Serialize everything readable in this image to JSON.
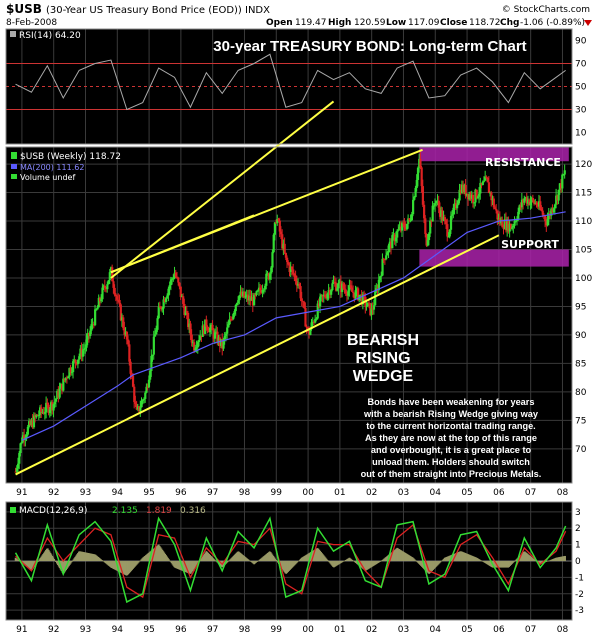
{
  "header": {
    "symbol": "$USB",
    "description": "(30-Year US Treasury Bond Price (EOD)) INDX",
    "date": "8-Feb-2008",
    "watermark": "© StockCharts.com",
    "open_label": "Open",
    "open": "119.47",
    "high_label": "High",
    "high": "120.59",
    "low_label": "Low",
    "low": "117.09",
    "close_label": "Close",
    "close": "118.72",
    "chg_label": "Chg",
    "chg": "-1.06 (-0.89%)"
  },
  "title": "30-year TREASURY BOND: Long-term Chart",
  "annotations": {
    "resistance": "RESISTANCE",
    "support": "SUPPORT",
    "wedge_line1": "BEARISH",
    "wedge_line2": "RISING",
    "wedge_line3": "WEDGE",
    "commentary": [
      "Bonds have been weakening for years",
      "with a bearish Rising Wedge giving way",
      "to the current horizontal trading range.",
      "As they are now at the top of this range",
      "and overbought, it is a great place to",
      "unload them. Holders should switch",
      "out of them straight into Precious Metals."
    ]
  },
  "colors": {
    "panel_bg": "#000000",
    "grid": "#3a3a3a",
    "price_up": "#33dd33",
    "price_down": "#dd2222",
    "ma": "#5a5aff",
    "rsi_line": "#aaaaaa",
    "rsi_ref": "#cc3333",
    "wedge": "#ffff44",
    "band": "#aa22aa",
    "macd": "#33dd33",
    "signal": "#dd2222",
    "histogram": "#999966",
    "text_on_dark": "#ffffff"
  },
  "chart_data": [
    {
      "panel": "rsi",
      "type": "line",
      "legend": "RSI(14) 64.20",
      "ylim": [
        0,
        100
      ],
      "yticks": [
        10,
        30,
        50,
        70,
        90
      ],
      "ref_lines": [
        30,
        50,
        70
      ],
      "series": [
        {
          "name": "RSI(14)",
          "x": [
            1990.8,
            1991.3,
            1991.8,
            1992.3,
            1992.8,
            1993.3,
            1993.8,
            1994.3,
            1994.8,
            1995.3,
            1995.8,
            1996.3,
            1996.8,
            1997.3,
            1997.8,
            1998.3,
            1998.8,
            1999.3,
            1999.8,
            2000.3,
            2000.8,
            2001.3,
            2001.8,
            2002.3,
            2002.8,
            2003.3,
            2003.8,
            2004.3,
            2004.8,
            2005.3,
            2005.8,
            2006.3,
            2006.8,
            2007.3,
            2007.8,
            2008.1
          ],
          "values": [
            52,
            45,
            68,
            40,
            64,
            70,
            73,
            30,
            36,
            66,
            58,
            32,
            62,
            44,
            64,
            70,
            78,
            32,
            36,
            64,
            56,
            62,
            48,
            44,
            66,
            72,
            40,
            42,
            60,
            66,
            54,
            36,
            62,
            48,
            58,
            64
          ]
        }
      ]
    },
    {
      "panel": "price",
      "type": "candlestick",
      "legend": [
        "$USB (Weekly) 118.72",
        "MA(200) 111.62",
        "Volume undef"
      ],
      "ylim": [
        64,
        123
      ],
      "yticks": [
        70,
        75,
        80,
        85,
        90,
        95,
        100,
        105,
        110,
        115,
        120
      ],
      "xticks": [
        "91",
        "92",
        "93",
        "94",
        "95",
        "96",
        "97",
        "98",
        "99",
        "00",
        "01",
        "02",
        "03",
        "04",
        "05",
        "06",
        "07",
        "08"
      ],
      "xlim": [
        1990.5,
        2008.3
      ],
      "series": [
        {
          "name": "$USB (Weekly)",
          "x": [
            1990.8,
            1991.0,
            1991.5,
            1992.0,
            1992.5,
            1993.0,
            1993.5,
            1993.8,
            1994.0,
            1994.3,
            1994.6,
            1994.9,
            1995.3,
            1995.8,
            1996.0,
            1996.4,
            1996.8,
            1997.3,
            1997.8,
            1998.3,
            1998.8,
            1999.0,
            1999.3,
            1999.7,
            2000.0,
            2000.4,
            2000.8,
            2001.2,
            2001.6,
            2002.0,
            2002.4,
            2002.8,
            2003.2,
            2003.5,
            2003.7,
            2004.0,
            2004.4,
            2004.8,
            2005.2,
            2005.6,
            2006.0,
            2006.4,
            2006.8,
            2007.2,
            2007.5,
            2007.8,
            2008.1
          ],
          "values": [
            66,
            72,
            76,
            78,
            84,
            88,
            97,
            101,
            96,
            89,
            76,
            80,
            94,
            101,
            97,
            88,
            92,
            88,
            97,
            96,
            101,
            111,
            103,
            99,
            90,
            96,
            99,
            98,
            97,
            94,
            104,
            108,
            110,
            121,
            106,
            114,
            108,
            116,
            114,
            117,
            110,
            109,
            114,
            113,
            110,
            114,
            119
          ]
        },
        {
          "name": "MA(200)",
          "x": [
            1991.0,
            1992.0,
            1993.0,
            1994.0,
            1994.5,
            1995.0,
            1996.0,
            1997.0,
            1998.0,
            1999.0,
            2000.0,
            2001.0,
            2002.0,
            2003.0,
            2004.0,
            2005.0,
            2006.0,
            2007.0,
            2008.1
          ],
          "values": [
            71.5,
            74,
            77.5,
            81,
            83,
            84,
            86,
            88.5,
            90,
            93,
            94,
            95,
            97.5,
            100,
            104,
            108,
            110,
            110.5,
            111.62
          ]
        }
      ]
    },
    {
      "panel": "price-overlay",
      "type": "lines",
      "series": [
        {
          "name": "wedge-upper",
          "x": [
            1993.8,
            2003.6
          ],
          "values": [
            101,
            122.5
          ]
        },
        {
          "name": "wedge-upper-high",
          "x": [
            1993.8,
            1998.3
          ],
          "values": [
            101,
            111
          ]
        },
        {
          "name": "wedge-lower",
          "x": [
            1990.8,
            2006.0
          ],
          "values": [
            65.5,
            107.5
          ]
        },
        {
          "name": "rsi-upper-extension",
          "x": [
            1993.8,
            2000.8
          ],
          "values": [
            100,
            131
          ]
        },
        {
          "name": "resistance",
          "x": [
            2003.5,
            2008.2
          ],
          "values": [
            120.5,
            123
          ]
        },
        {
          "name": "support",
          "x": [
            2003.5,
            2008.2
          ],
          "values": [
            102,
            105
          ]
        }
      ]
    },
    {
      "panel": "macd",
      "type": "line",
      "legend": [
        "MACD(12,26,9)",
        "2.135",
        "1.819",
        "0.316"
      ],
      "ylim": [
        -3.6,
        3.6
      ],
      "yticks": [
        -3,
        -2,
        -1,
        0,
        1,
        2,
        3
      ],
      "series": [
        {
          "name": "MACD",
          "x": [
            1990.8,
            1991.3,
            1991.8,
            1992.3,
            1992.8,
            1993.3,
            1993.8,
            1994.3,
            1994.8,
            1995.3,
            1995.8,
            1996.3,
            1996.8,
            1997.3,
            1997.8,
            1998.3,
            1998.8,
            1999.3,
            1999.8,
            2000.3,
            2000.8,
            2001.3,
            2001.8,
            2002.3,
            2002.8,
            2003.3,
            2003.8,
            2004.3,
            2004.8,
            2005.3,
            2005.8,
            2006.3,
            2006.8,
            2007.3,
            2007.8,
            2008.1
          ],
          "values": [
            0.5,
            -1.2,
            2.2,
            -0.8,
            1.6,
            2.4,
            1.2,
            -2.5,
            -2.0,
            2.6,
            1.0,
            -1.8,
            1.4,
            -0.6,
            1.8,
            0.8,
            2.6,
            -2.2,
            -1.8,
            2.0,
            0.6,
            1.2,
            -1.2,
            -1.6,
            2.2,
            2.4,
            -1.4,
            -0.8,
            1.6,
            1.8,
            -0.2,
            -1.8,
            1.4,
            -0.4,
            0.8,
            2.135
          ]
        },
        {
          "name": "Signal",
          "x": [
            1990.8,
            1991.3,
            1991.8,
            1992.3,
            1992.8,
            1993.3,
            1993.8,
            1994.3,
            1994.8,
            1995.3,
            1995.8,
            1996.3,
            1996.8,
            1997.3,
            1997.8,
            1998.3,
            1998.8,
            1999.3,
            1999.8,
            2000.3,
            2000.8,
            2001.3,
            2001.8,
            2002.3,
            2002.8,
            2003.3,
            2003.8,
            2004.3,
            2004.8,
            2005.3,
            2005.8,
            2006.3,
            2006.8,
            2007.3,
            2007.8,
            2008.1
          ],
          "values": [
            0.3,
            -0.6,
            1.4,
            0.0,
            1.0,
            2.0,
            1.6,
            -1.6,
            -2.2,
            1.6,
            1.4,
            -1.0,
            0.8,
            -0.2,
            1.2,
            1.0,
            2.0,
            -1.4,
            -2.0,
            1.2,
            1.0,
            1.0,
            -0.6,
            -1.6,
            1.4,
            2.2,
            -0.6,
            -1.0,
            1.0,
            1.6,
            0.2,
            -1.4,
            0.8,
            -0.2,
            0.6,
            1.819
          ]
        }
      ]
    }
  ]
}
